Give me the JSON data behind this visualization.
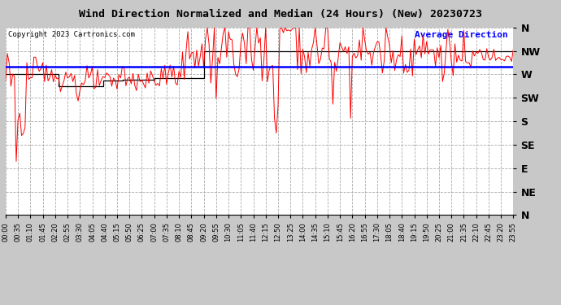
{
  "title": "Wind Direction Normalized and Median (24 Hours) (New) 20230723",
  "copyright": "Copyright 2023 Cartronics.com",
  "legend_label": "Average Direction",
  "legend_color": "#0000ff",
  "background_color": "#c8c8c8",
  "plot_bg_color": "#ffffff",
  "grid_color": "#aaaaaa",
  "ytick_labels": [
    "N",
    "NW",
    "W",
    "SW",
    "S",
    "SE",
    "E",
    "NE",
    "N"
  ],
  "ytick_values": [
    360,
    315,
    270,
    225,
    180,
    135,
    90,
    45,
    0
  ],
  "ylim": [
    0,
    360
  ],
  "avg_direction": 285,
  "xlabel_step_minutes": 35,
  "total_minutes": 1435,
  "interval_minutes": 5
}
